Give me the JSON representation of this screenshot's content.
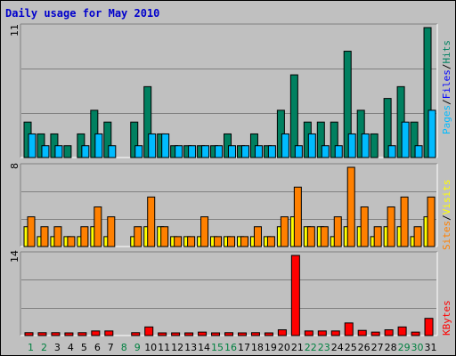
{
  "title": "Daily usage for May 2010",
  "colors": {
    "pages": "#00bbff",
    "files": "#0000ff",
    "hits": "#008060",
    "sites": "#ff8000",
    "visits": "#ffff00",
    "kbytes": "#ff0000",
    "weekday_label": "#000000",
    "weekend_label": "#008040"
  },
  "legend": {
    "panel1": {
      "pages": "Pages",
      "sep1": "/",
      "files": "Files",
      "sep2": "/",
      "hits": "Hits"
    },
    "panel2": {
      "sites": "Sites",
      "sep1": "/",
      "visits": "Visits"
    },
    "panel3": {
      "kbytes": "KBytes"
    }
  },
  "axis_max": {
    "hits": "11",
    "visits": "8",
    "kbytes": "14"
  },
  "chart_data": {
    "type": "bar",
    "title": "Daily usage for May 2010",
    "categories": [
      "1",
      "2",
      "3",
      "4",
      "5",
      "6",
      "7",
      "8",
      "9",
      "10",
      "11",
      "12",
      "13",
      "14",
      "15",
      "16",
      "17",
      "18",
      "19",
      "20",
      "21",
      "22",
      "23",
      "24",
      "25",
      "26",
      "27",
      "28",
      "29",
      "30",
      "31"
    ],
    "weekend_days": [
      "1",
      "2",
      "8",
      "9",
      "15",
      "16",
      "22",
      "23",
      "29",
      "30"
    ],
    "panels": [
      {
        "name": "hits_files_pages",
        "ylim": [
          0,
          11
        ],
        "series": [
          {
            "name": "Hits",
            "values": [
              3,
              2,
              2,
              1,
              2,
              4,
              3,
              0,
              3,
              6,
              2,
              1,
              1,
              1,
              1,
              2,
              1,
              2,
              1,
              4,
              7,
              3,
              3,
              3,
              9,
              4,
              2,
              5,
              6,
              3,
              11
            ]
          },
          {
            "name": "Files",
            "values": [
              2,
              1,
              1,
              0,
              1,
              2,
              1,
              0,
              1,
              2,
              2,
              1,
              1,
              1,
              1,
              1,
              1,
              1,
              1,
              2,
              1,
              2,
              1,
              1,
              2,
              2,
              0,
              1,
              3,
              1,
              4
            ]
          },
          {
            "name": "Pages",
            "values": [
              2,
              1,
              1,
              0,
              1,
              2,
              1,
              0,
              1,
              2,
              2,
              1,
              1,
              1,
              1,
              1,
              1,
              1,
              1,
              2,
              1,
              2,
              1,
              1,
              2,
              2,
              0,
              1,
              3,
              1,
              4
            ]
          }
        ]
      },
      {
        "name": "visits_sites",
        "ylim": [
          0,
          8
        ],
        "series": [
          {
            "name": "Visits",
            "values": [
              2,
              1,
              1,
              1,
              1,
              2,
              1,
              0,
              1,
              2,
              2,
              1,
              1,
              1,
              1,
              1,
              1,
              1,
              1,
              2,
              3,
              2,
              2,
              1,
              2,
              2,
              1,
              2,
              2,
              1,
              3
            ]
          },
          {
            "name": "Sites",
            "values": [
              3,
              2,
              2,
              1,
              2,
              4,
              3,
              0,
              2,
              5,
              2,
              1,
              1,
              3,
              1,
              1,
              1,
              2,
              1,
              3,
              6,
              2,
              2,
              3,
              8,
              4,
              2,
              4,
              5,
              2,
              5
            ]
          }
        ]
      },
      {
        "name": "kbytes",
        "ylim": [
          0,
          14
        ],
        "series": [
          {
            "name": "KBytes",
            "values": [
              0.5,
              0.5,
              0.5,
              0.3,
              0.5,
              0.8,
              0.8,
              0,
              0.5,
              1.5,
              0.4,
              0.3,
              0.3,
              0.6,
              0.4,
              0.5,
              0.3,
              0.5,
              0.3,
              1.0,
              14,
              0.8,
              0.8,
              0.8,
              2.2,
              0.9,
              0.6,
              1.0,
              1.5,
              0.6,
              3.0
            ]
          }
        ]
      }
    ]
  }
}
